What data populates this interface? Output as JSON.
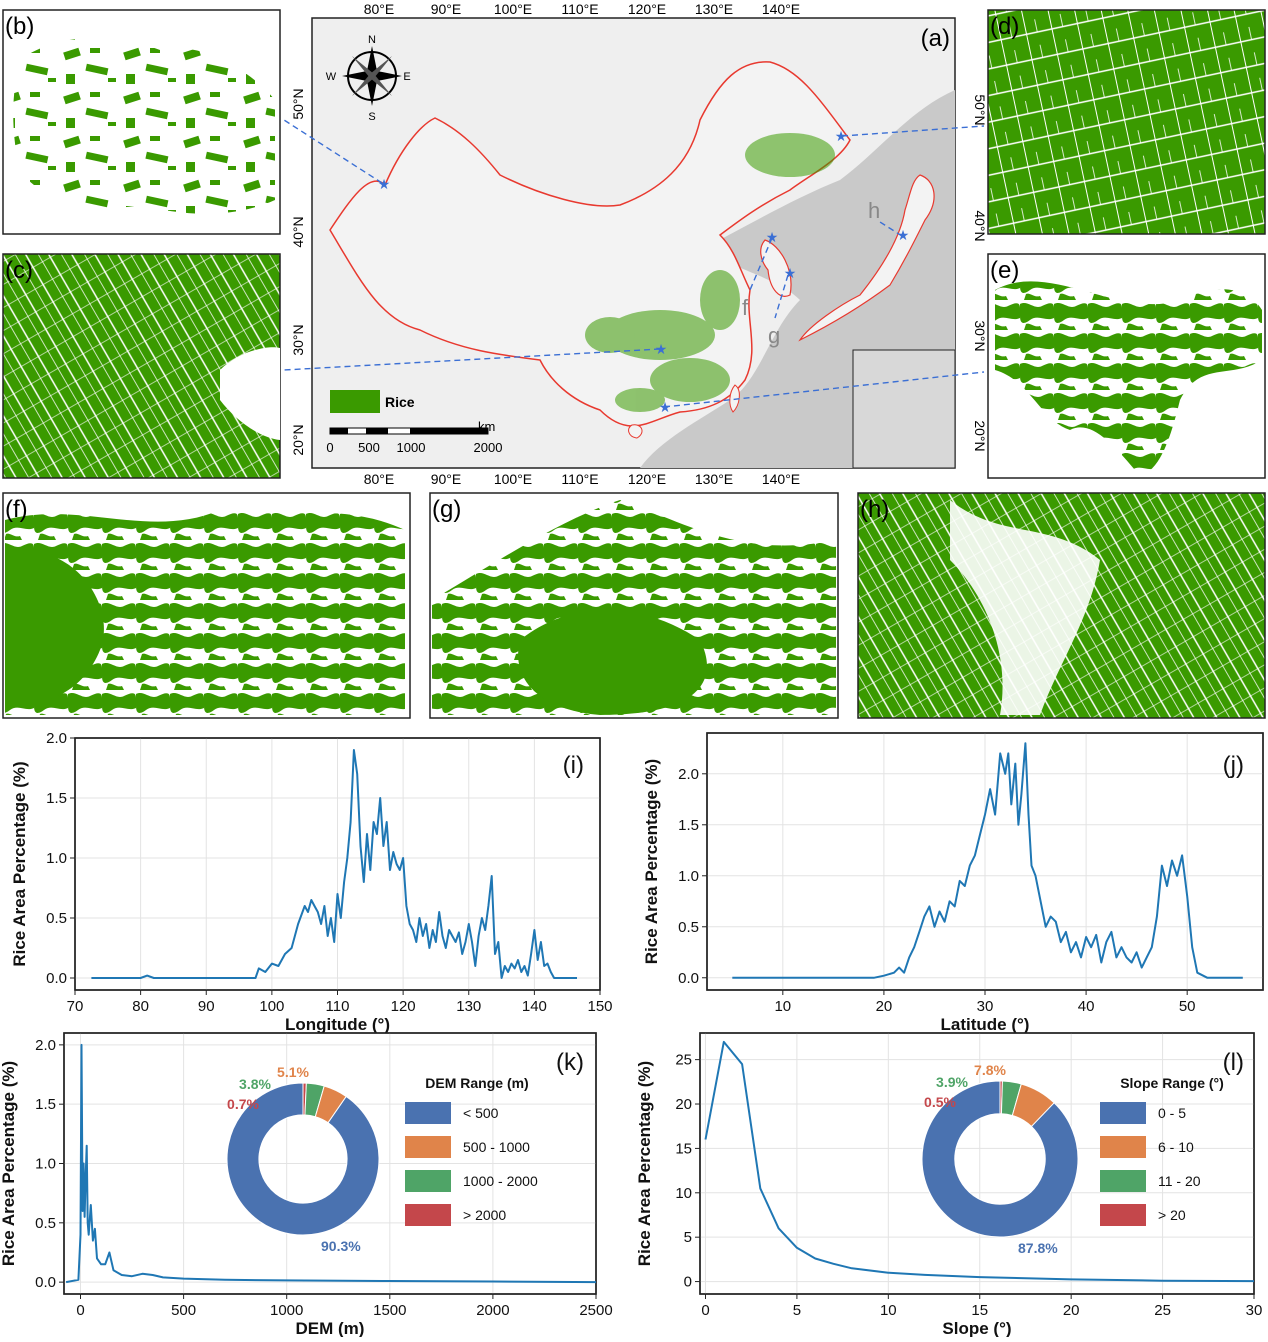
{
  "colors": {
    "rice": "#3a9a00",
    "line": "#1f77b4",
    "border": "#e8392f",
    "star": "#3b6fd4",
    "dem": [
      "#4a72b0",
      "#e0844a",
      "#4fa467",
      "#c4474b"
    ]
  },
  "panel_labels": {
    "a": "(a)",
    "b": "(b)",
    "c": "(c)",
    "d": "(d)",
    "e": "(e)",
    "f": "(f)",
    "g": "(g)",
    "h": "(h)",
    "i": "(i)",
    "j": "(j)",
    "k": "(k)",
    "l": "(l)"
  },
  "map": {
    "lon_ticks": [
      "80°E",
      "90°E",
      "100°E",
      "110°E",
      "120°E",
      "130°E",
      "140°E"
    ],
    "lat_ticks": [
      "50°N",
      "40°N",
      "30°N",
      "20°N"
    ],
    "compass": {
      "n": "N",
      "s": "S",
      "e": "E",
      "w": "W"
    },
    "legend_label": "Rice",
    "scale_labels": [
      "0",
      "500",
      "1000",
      "2000"
    ],
    "scale_unit": "km",
    "site_labels": {
      "f": "f",
      "g": "g",
      "h": "h"
    }
  },
  "chart_data": [
    {
      "id": "i",
      "type": "line",
      "xlabel": "Longitude (°)",
      "ylabel": "Rice Area Percentage (%)",
      "xlim": [
        70,
        150
      ],
      "ylim": [
        -0.1,
        2.0
      ],
      "xticks": [
        70,
        80,
        90,
        100,
        110,
        120,
        130,
        140,
        150
      ],
      "yticks": [
        0.0,
        0.5,
        1.0,
        1.5,
        2.0
      ],
      "xtick_labels": [
        "70",
        "80",
        "90",
        "100",
        "110",
        "120",
        "130",
        "140",
        "150"
      ],
      "ytick_labels": [
        "0.0",
        "0.5",
        "1.0",
        "1.5",
        "2.0"
      ],
      "grid": true,
      "x": [
        72.5,
        80,
        81,
        82,
        90,
        97.5,
        98,
        99,
        100,
        101,
        102,
        103,
        104,
        105,
        105.5,
        106,
        106.5,
        107,
        107.5,
        108,
        108.5,
        109,
        109.5,
        110,
        110.5,
        111,
        111.5,
        112,
        112.5,
        113,
        113.5,
        114,
        114.5,
        115,
        115.5,
        116,
        116.5,
        117,
        117.5,
        118,
        118.5,
        119,
        119.5,
        120,
        120.5,
        121,
        121.5,
        122,
        122.5,
        123,
        123.5,
        124,
        124.5,
        125,
        125.5,
        126,
        126.5,
        127,
        127.5,
        128,
        128.5,
        129,
        129.5,
        130,
        130.5,
        131,
        131.5,
        132,
        132.5,
        133,
        133.5,
        134,
        134.5,
        135,
        135.5,
        136,
        136.5,
        137,
        137.5,
        138,
        138.5,
        139,
        139.5,
        140,
        140.5,
        141,
        141.5,
        142,
        142.5,
        143,
        144,
        146.5
      ],
      "y": [
        0.0,
        0.0,
        0.02,
        0.0,
        0.0,
        0.0,
        0.08,
        0.05,
        0.12,
        0.1,
        0.2,
        0.25,
        0.45,
        0.6,
        0.55,
        0.65,
        0.6,
        0.55,
        0.45,
        0.6,
        0.35,
        0.5,
        0.3,
        0.7,
        0.5,
        0.8,
        1.0,
        1.3,
        1.9,
        1.7,
        1.1,
        0.8,
        1.2,
        0.9,
        1.3,
        1.2,
        1.5,
        1.1,
        1.3,
        0.9,
        1.05,
        0.95,
        0.9,
        1.0,
        0.6,
        0.45,
        0.4,
        0.3,
        0.5,
        0.35,
        0.45,
        0.25,
        0.4,
        0.3,
        0.55,
        0.35,
        0.25,
        0.4,
        0.35,
        0.3,
        0.38,
        0.2,
        0.3,
        0.45,
        0.3,
        0.1,
        0.35,
        0.5,
        0.4,
        0.6,
        0.85,
        0.2,
        0.3,
        0.0,
        0.1,
        0.05,
        0.12,
        0.08,
        0.15,
        0.05,
        0.1,
        0.02,
        0.2,
        0.4,
        0.15,
        0.3,
        0.1,
        0.12,
        0.05,
        0.0,
        0.0,
        0.0
      ]
    },
    {
      "id": "j",
      "type": "line",
      "xlabel": "Latitude (°)",
      "ylabel": "Rice Area Percentage (%)",
      "xlim": [
        2.5,
        57.5
      ],
      "ylim": [
        -0.12,
        2.4
      ],
      "xticks": [
        10,
        20,
        30,
        40,
        50
      ],
      "yticks": [
        0.0,
        0.5,
        1.0,
        1.5,
        2.0
      ],
      "xtick_labels": [
        "10",
        "20",
        "30",
        "40",
        "50"
      ],
      "ytick_labels": [
        "0.0",
        "0.5",
        "1.0",
        "1.5",
        "2.0"
      ],
      "grid": true,
      "x": [
        5,
        15,
        19,
        20,
        21,
        21.5,
        22,
        22.5,
        23,
        23.5,
        24,
        24.5,
        25,
        25.5,
        26,
        26.5,
        27,
        27.5,
        28,
        28.5,
        29,
        29.5,
        30,
        30.5,
        31,
        31.5,
        32,
        32.3,
        32.6,
        33,
        33.3,
        33.6,
        34,
        34.3,
        34.6,
        35,
        35.5,
        36,
        36.5,
        37,
        37.5,
        38,
        38.5,
        39,
        39.5,
        40,
        40.5,
        41,
        41.5,
        42,
        42.5,
        43,
        43.5,
        44,
        44.5,
        45,
        45.5,
        46,
        46.5,
        47,
        47.5,
        48,
        48.5,
        49,
        49.5,
        50,
        50.5,
        51,
        52,
        55.5
      ],
      "y": [
        0.0,
        0.0,
        0.0,
        0.02,
        0.05,
        0.1,
        0.05,
        0.2,
        0.3,
        0.45,
        0.6,
        0.7,
        0.5,
        0.65,
        0.55,
        0.75,
        0.7,
        0.95,
        0.9,
        1.1,
        1.2,
        1.4,
        1.6,
        1.85,
        1.6,
        2.2,
        2.0,
        2.2,
        1.7,
        2.1,
        1.5,
        1.8,
        2.3,
        1.6,
        1.1,
        1.0,
        0.75,
        0.5,
        0.6,
        0.55,
        0.35,
        0.45,
        0.25,
        0.35,
        0.2,
        0.4,
        0.3,
        0.42,
        0.15,
        0.35,
        0.45,
        0.2,
        0.3,
        0.2,
        0.15,
        0.25,
        0.1,
        0.2,
        0.3,
        0.6,
        1.1,
        0.9,
        1.15,
        1.0,
        1.2,
        0.8,
        0.3,
        0.05,
        0.0,
        0.0
      ]
    },
    {
      "id": "k",
      "type": "line",
      "xlabel": "DEM (m)",
      "ylabel": "Rice Area Percentage (%)",
      "xlim": [
        -80,
        2500
      ],
      "ylim": [
        -0.1,
        2.1
      ],
      "xticks": [
        0,
        500,
        1000,
        1500,
        2000,
        2500
      ],
      "yticks": [
        0.0,
        0.5,
        1.0,
        1.5,
        2.0
      ],
      "xtick_labels": [
        "0",
        "500",
        "1000",
        "1500",
        "2000",
        "2500"
      ],
      "ytick_labels": [
        "0.0",
        "0.5",
        "1.0",
        "1.5",
        "2.0"
      ],
      "grid": true,
      "x": [
        -70,
        -10,
        0,
        5,
        10,
        15,
        20,
        25,
        30,
        35,
        40,
        50,
        60,
        70,
        80,
        100,
        120,
        140,
        160,
        200,
        250,
        300,
        350,
        400,
        500,
        700,
        1000,
        1500,
        2000,
        2500
      ],
      "y": [
        0.0,
        0.02,
        0.4,
        2.0,
        0.6,
        1.0,
        0.55,
        0.9,
        1.15,
        0.5,
        0.4,
        0.65,
        0.35,
        0.45,
        0.2,
        0.15,
        0.15,
        0.25,
        0.1,
        0.06,
        0.05,
        0.07,
        0.06,
        0.04,
        0.03,
        0.02,
        0.015,
        0.01,
        0.005,
        0.0
      ],
      "inset": {
        "type": "pie",
        "legend_title": "DEM Range (m)",
        "labels": [
          "< 500",
          "500 - 1000",
          "1000 - 2000",
          "> 2000"
        ],
        "values": [
          90.3,
          5.1,
          3.8,
          0.7
        ],
        "value_labels": [
          "90.3%",
          "5.1%",
          "3.8%",
          "0.7%"
        ]
      }
    },
    {
      "id": "l",
      "type": "line",
      "xlabel": "Slope (°)",
      "ylabel": "Rice Area Percentage (%)",
      "xlim": [
        -0.3,
        30
      ],
      "ylim": [
        -1.4,
        28
      ],
      "xticks": [
        0,
        5,
        10,
        15,
        20,
        25,
        30
      ],
      "yticks": [
        0,
        5,
        10,
        15,
        20,
        25
      ],
      "xtick_labels": [
        "0",
        "5",
        "10",
        "15",
        "20",
        "25",
        "30"
      ],
      "ytick_labels": [
        "0",
        "5",
        "10",
        "15",
        "20",
        "25"
      ],
      "grid": true,
      "x": [
        0,
        1,
        2,
        3,
        4,
        5,
        6,
        7,
        8,
        10,
        12,
        15,
        20,
        25,
        30
      ],
      "y": [
        16,
        27,
        24.5,
        10.5,
        6,
        3.8,
        2.6,
        2.0,
        1.5,
        1.0,
        0.75,
        0.5,
        0.25,
        0.1,
        0.05
      ],
      "inset": {
        "type": "pie",
        "legend_title": "Slope Range (°)",
        "labels": [
          "0 - 5",
          "6 - 10",
          "11 - 20",
          "> 20"
        ],
        "values": [
          87.8,
          7.8,
          3.9,
          0.5
        ],
        "value_labels": [
          "87.8%",
          "7.8%",
          "3.9%",
          "0.5%"
        ]
      }
    }
  ]
}
